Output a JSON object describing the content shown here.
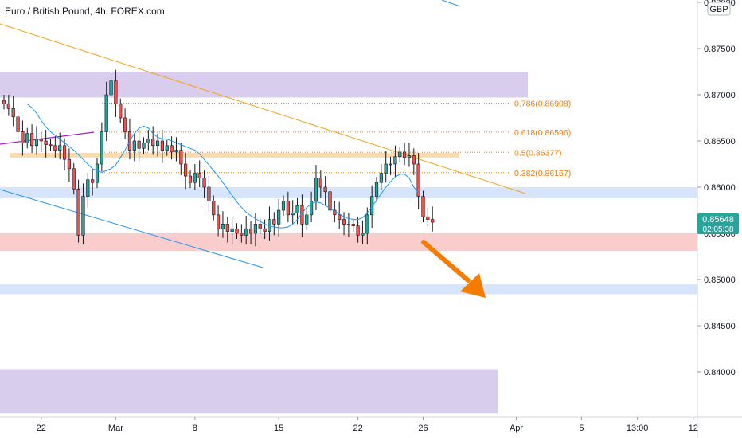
{
  "header": {
    "title": "Euro / British Pound, 4h, FOREX.com",
    "currency": "GBP"
  },
  "price_label": {
    "price": "0.85648",
    "countdown": "02:05:38"
  },
  "colors": {
    "bull": "#26a69a",
    "bear": "#ef5350",
    "ma": "#2196f3",
    "trend_orange": "#f7a21b",
    "fib": "#f57c00",
    "purple_zone": "#d1c4e9",
    "blue_zone": "#cfe0fb",
    "red_zone": "#f9c4c4",
    "arrow": "#f57c00"
  },
  "chart_data": {
    "type": "candlestick",
    "symbol": "EURGBP",
    "timeframe": "4h",
    "ylim": [
      0.8355,
      0.88
    ],
    "y_ticks": [
      "0.88000",
      "0.87500",
      "0.87000",
      "0.86500",
      "0.86000",
      "0.85500",
      "0.85000",
      "0.84500",
      "0.84000"
    ],
    "x_ticks": [
      {
        "label": "22",
        "bar": 8
      },
      {
        "label": "Mar",
        "bar": 24
      },
      {
        "label": "8",
        "bar": 41
      },
      {
        "label": "15",
        "bar": 59
      },
      {
        "label": "22",
        "bar": 76
      },
      {
        "label": "26",
        "bar": 90
      },
      {
        "label": "Apr",
        "bar": 110
      },
      {
        "label": "5",
        "bar": 124
      },
      {
        "label": "13:00",
        "bar": 136
      },
      {
        "label": "12",
        "bar": 148
      }
    ],
    "closes": [
      0.869,
      0.8685,
      0.8676,
      0.866,
      0.8648,
      0.8658,
      0.8645,
      0.8652,
      0.865,
      0.8646,
      0.8645,
      0.864,
      0.8645,
      0.863,
      0.862,
      0.8598,
      0.8548,
      0.859,
      0.8608,
      0.8605,
      0.8625,
      0.866,
      0.87,
      0.8715,
      0.869,
      0.8675,
      0.866,
      0.864,
      0.865,
      0.8642,
      0.8648,
      0.8652,
      0.8645,
      0.865,
      0.864,
      0.8645,
      0.8638,
      0.864,
      0.8625,
      0.8612,
      0.8605,
      0.8615,
      0.861,
      0.86,
      0.8585,
      0.857,
      0.8555,
      0.856,
      0.8552,
      0.8555,
      0.855,
      0.8548,
      0.8555,
      0.855,
      0.856,
      0.8555,
      0.8552,
      0.8565,
      0.856,
      0.8575,
      0.8585,
      0.857,
      0.8572,
      0.858,
      0.856,
      0.857,
      0.8585,
      0.861,
      0.86,
      0.8595,
      0.8575,
      0.857,
      0.8565,
      0.856,
      0.856,
      0.8558,
      0.8548,
      0.855,
      0.857,
      0.859,
      0.8605,
      0.8615,
      0.8625,
      0.8625,
      0.8633,
      0.8638,
      0.8632,
      0.8634,
      0.8625,
      0.859,
      0.8568,
      0.8565,
      0.8562
    ],
    "ma": [
      0.869,
      0.8686,
      0.868,
      0.8672,
      0.8665,
      0.866,
      0.8656,
      0.8652,
      0.8648,
      0.8644,
      0.864,
      0.8635,
      0.863,
      0.8625,
      0.862,
      0.8618,
      0.8616,
      0.8618,
      0.862,
      0.8624,
      0.8632,
      0.864,
      0.865,
      0.8658,
      0.8664,
      0.8666,
      0.8664,
      0.8658,
      0.8654,
      0.8652,
      0.8652,
      0.865,
      0.8648,
      0.8646,
      0.8644,
      0.8642,
      0.864,
      0.8636,
      0.863,
      0.8624,
      0.8618,
      0.8612,
      0.8605,
      0.8598,
      0.8591,
      0.8584,
      0.8578,
      0.8573,
      0.8569,
      0.8566,
      0.8563,
      0.856,
      0.8558,
      0.8557,
      0.8556,
      0.8556,
      0.8557,
      0.856,
      0.8565,
      0.8572,
      0.8578,
      0.8582,
      0.8584,
      0.8583,
      0.858,
      0.8577,
      0.8574,
      0.8571,
      0.8568,
      0.8566,
      0.8565,
      0.8565,
      0.8567,
      0.8572,
      0.8579,
      0.8586,
      0.8593,
      0.86,
      0.8606,
      0.8611,
      0.8614,
      0.8614,
      0.861,
      0.86,
      0.8594
    ],
    "fib_levels": [
      {
        "label": "0.786(0.86908)",
        "price": 0.86908
      },
      {
        "label": "0.618(0.86596)",
        "price": 0.86596
      },
      {
        "label": "0.5(0.86377)",
        "price": 0.86377
      },
      {
        "label": "0.382(0.86157)",
        "price": 0.86157
      }
    ],
    "zones": [
      {
        "kind": "purple",
        "top": 0.8725,
        "bottom": 0.8697
      },
      {
        "kind": "orange",
        "top": 0.8637,
        "bottom": 0.8632
      },
      {
        "kind": "blue",
        "top": 0.86,
        "bottom": 0.8588
      },
      {
        "kind": "red",
        "top": 0.855,
        "bottom": 0.8531
      },
      {
        "kind": "blue",
        "top": 0.8495,
        "bottom": 0.8484
      },
      {
        "kind": "purple",
        "top": 0.8403,
        "bottom": 0.8355
      }
    ]
  }
}
